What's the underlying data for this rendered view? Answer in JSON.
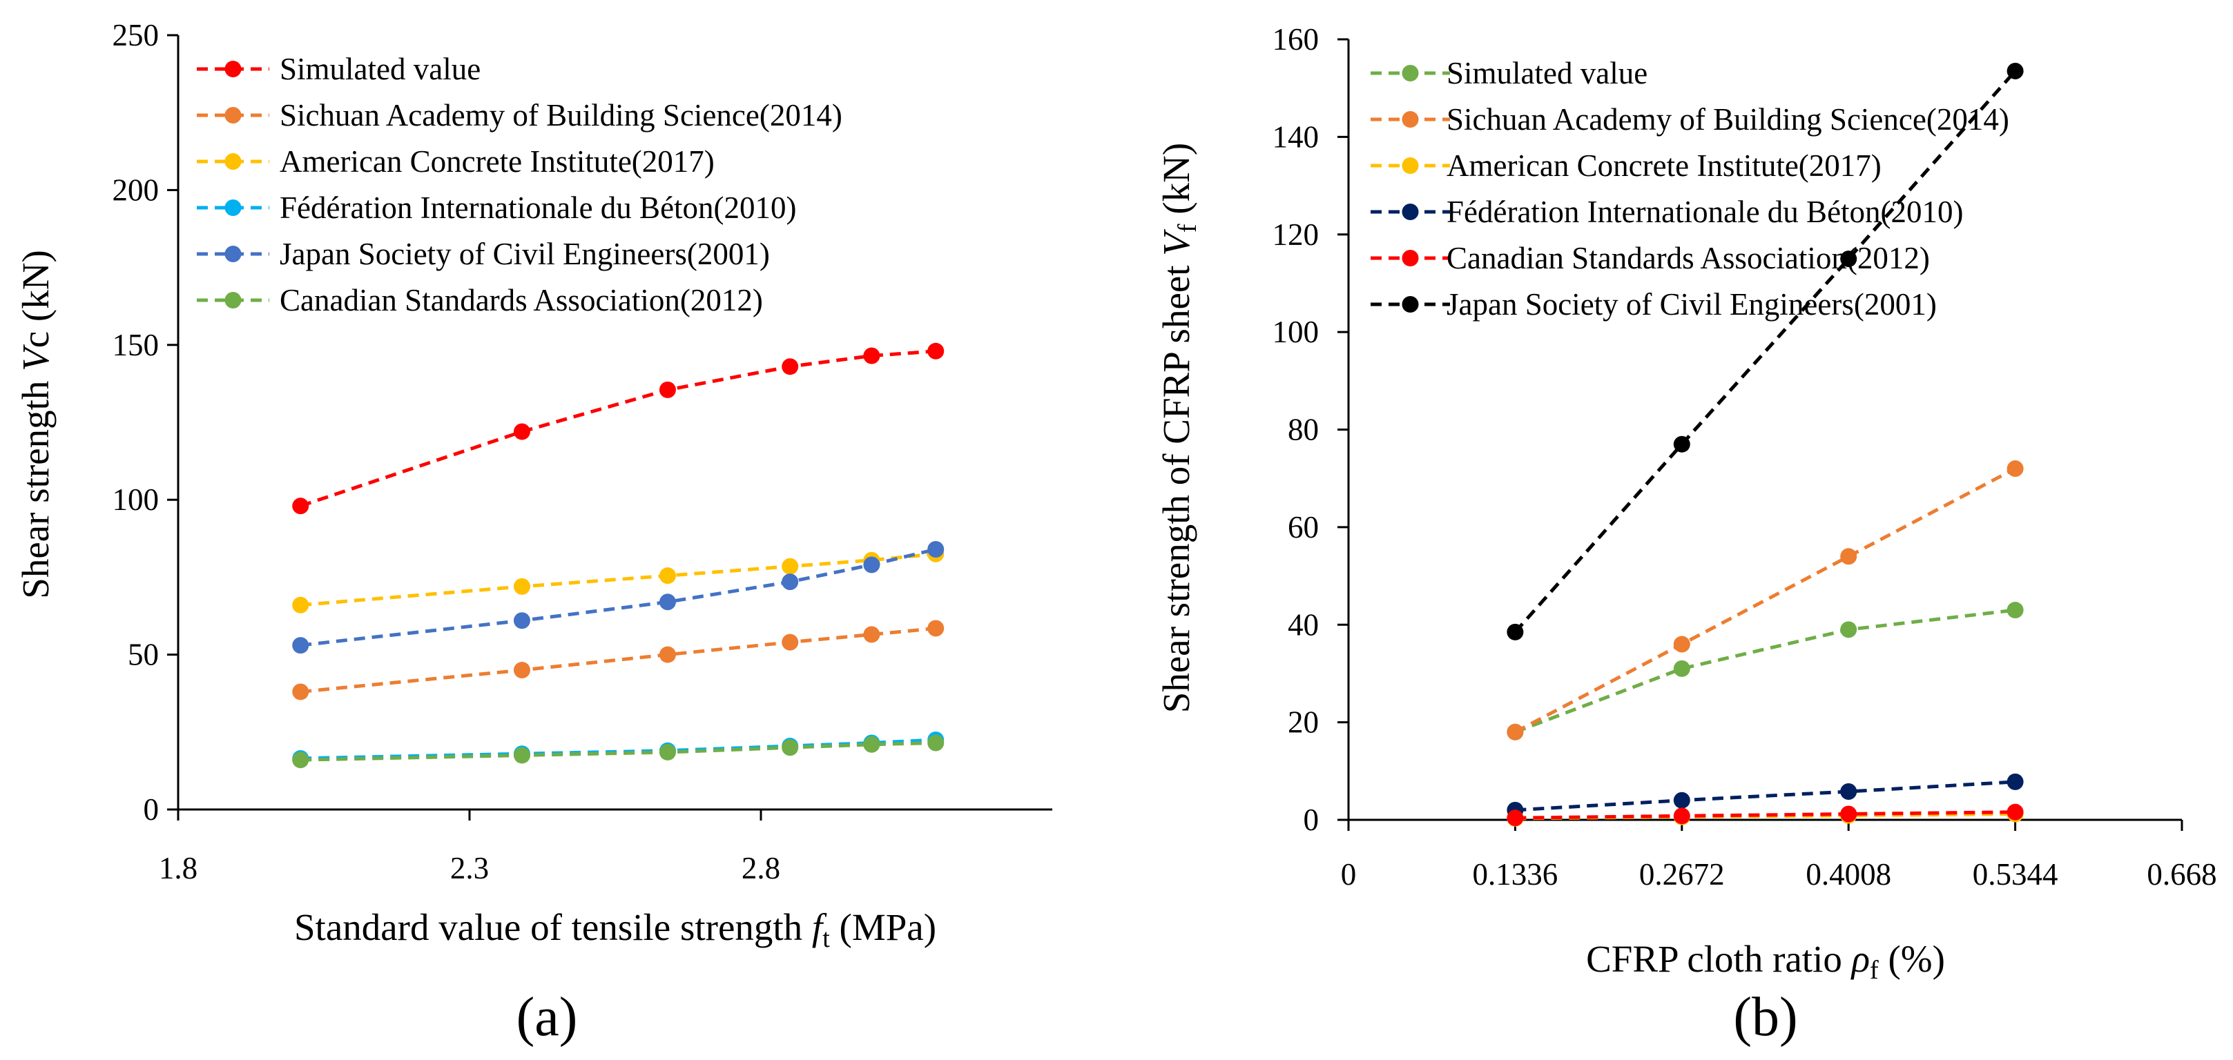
{
  "chart_data": [
    {
      "type": "line",
      "panel_label": "(a)",
      "ylabel_prefix": "Shear strength ",
      "ylabel_var": "V",
      "ylabel_suffix": "c (kN)",
      "xlabel_prefix": "Standard value of tensile strength ",
      "xlabel_var": "f",
      "xlabel_sub": "t",
      "xlabel_suffix": " (MPa)",
      "xlim": [
        1.8,
        3.3
      ],
      "ylim": [
        0,
        250
      ],
      "xticks": [
        "1.8",
        "2.3",
        "2.8"
      ],
      "xtick_values": [
        1.8,
        2.3,
        2.8
      ],
      "yticks": [
        "0",
        "50",
        "100",
        "150",
        "200",
        "250"
      ],
      "ytick_values": [
        0,
        50,
        100,
        150,
        200,
        250
      ],
      "grid": false,
      "legend_position": "top-left",
      "x": [
        2.01,
        2.39,
        2.64,
        2.85,
        2.99,
        3.1
      ],
      "series": [
        {
          "name": "Simulated value",
          "color": "#ff0000",
          "values": [
            98,
            122,
            135.5,
            143,
            146.5,
            148
          ]
        },
        {
          "name": "Sichuan Academy of Building Science(2014)",
          "color": "#ed7d31",
          "values": [
            38,
            45,
            50,
            54,
            56.5,
            58.5
          ]
        },
        {
          "name": "American Concrete Institute(2017)",
          "color": "#ffc000",
          "values": [
            66,
            72,
            75.5,
            78.5,
            80.5,
            82.5
          ]
        },
        {
          "name": "Fédération Internationale du Béton(2010)",
          "color": "#00b0f0",
          "values": [
            16.5,
            18,
            19,
            20.5,
            21.5,
            22.5
          ]
        },
        {
          "name": "Japan Society of Civil Engineers(2001)",
          "color": "#4472c4",
          "values": [
            53,
            61,
            67,
            73.5,
            79,
            84
          ]
        },
        {
          "name": "Canadian Standards Association(2012)",
          "color": "#70ad47",
          "values": [
            16,
            17.5,
            18.5,
            20,
            21,
            21.5
          ]
        }
      ]
    },
    {
      "type": "line",
      "panel_label": "(b)",
      "ylabel_prefix": "Shear strength of CFRP sheet ",
      "ylabel_var": "V",
      "ylabel_sub": "f",
      "ylabel_suffix": " (kN)",
      "xlabel_prefix": "CFRP cloth ratio ",
      "xlabel_var": "ρ",
      "xlabel_sub": "f",
      "xlabel_suffix": " (%)",
      "xlim": [
        0,
        0.668
      ],
      "ylim": [
        0,
        160
      ],
      "xticks": [
        "0",
        "0.1336",
        "0.2672",
        "0.4008",
        "0.5344",
        "0.668"
      ],
      "xtick_values": [
        0,
        0.1336,
        0.2672,
        0.4008,
        0.5344,
        0.668
      ],
      "yticks": [
        "0",
        "20",
        "40",
        "60",
        "80",
        "100",
        "120",
        "140",
        "160"
      ],
      "ytick_values": [
        0,
        20,
        40,
        60,
        80,
        100,
        120,
        140,
        160
      ],
      "grid": false,
      "legend_position": "top-left",
      "x": [
        0.1336,
        0.2672,
        0.4008,
        0.5344
      ],
      "series": [
        {
          "name": "Simulated value",
          "color": "#70ad47",
          "values": [
            18,
            31,
            39,
            43
          ]
        },
        {
          "name": "Sichuan Academy of Building Science(2014)",
          "color": "#ed7d31",
          "values": [
            18,
            36,
            54,
            72
          ]
        },
        {
          "name": "American Concrete Institute(2017)",
          "color": "#ffc000",
          "values": [
            0.3,
            0.6,
            0.9,
            1.2
          ]
        },
        {
          "name": "Fédération Internationale du Béton(2010)",
          "color": "#002060",
          "values": [
            2,
            4,
            5.8,
            7.8
          ]
        },
        {
          "name": "Canadian Standards Association(2012)",
          "color": "#ff0000",
          "values": [
            0.4,
            0.8,
            1.2,
            1.6
          ]
        },
        {
          "name": "Japan Society of Civil Engineers(2001)",
          "color": "#000000",
          "values": [
            38.5,
            77,
            115,
            153.5
          ]
        }
      ]
    }
  ]
}
